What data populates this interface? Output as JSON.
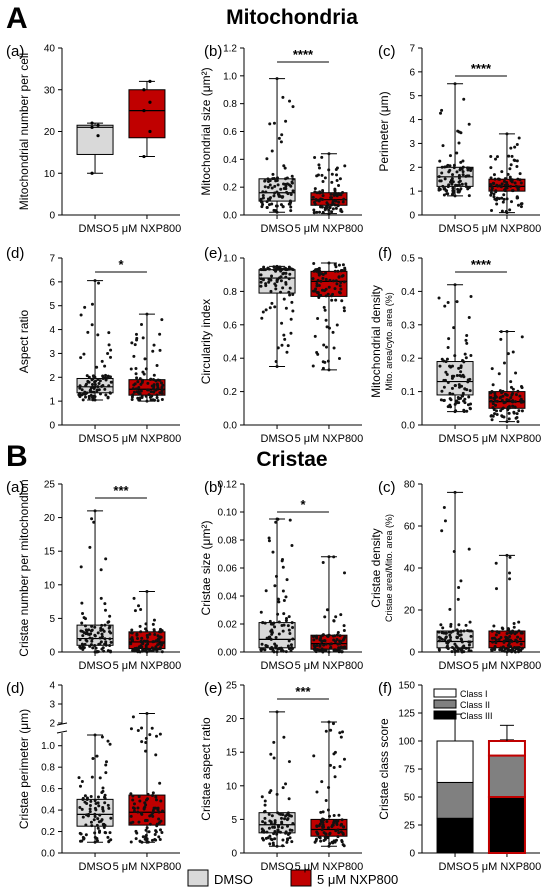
{
  "section_a": {
    "letter": "A",
    "title": "Mitochondria"
  },
  "section_b": {
    "letter": "B",
    "title": "Cristae"
  },
  "legend": [
    {
      "label": "DMSO",
      "color": "#d9d9d9"
    },
    {
      "label": "5 μM NXP800",
      "color": "#c00000"
    }
  ],
  "colors": {
    "dmso": "#d9d9d9",
    "nxp": "#c00000"
  },
  "chart_data": [
    {
      "panel": "A(a)",
      "type": "box",
      "ylabel": "Mitochondrial number per cell",
      "ylim": [
        0,
        40
      ],
      "yticks": [
        0,
        10,
        20,
        30,
        40
      ],
      "categories": [
        "DMSO",
        "5 μM NXP800"
      ],
      "significance": "",
      "series": [
        {
          "min": 10,
          "q1": 14.5,
          "median": 21,
          "q3": 21.5,
          "max": 22,
          "points": [
            10,
            19,
            21,
            21.5,
            22
          ]
        },
        {
          "min": 14,
          "q1": 18.5,
          "median": 25,
          "q3": 30,
          "max": 32,
          "points": [
            14,
            20,
            25,
            27,
            30,
            32
          ]
        }
      ]
    },
    {
      "panel": "A(b)",
      "type": "box",
      "ylabel": "Mitochondrial size (μm²)",
      "ylim": [
        0,
        1.2
      ],
      "yticks": [
        0,
        0.2,
        0.4,
        0.6,
        0.8,
        1.0,
        1.2
      ],
      "categories": [
        "DMSO",
        "5 μM NXP800"
      ],
      "significance": "****",
      "series": [
        {
          "min": 0.02,
          "q1": 0.1,
          "median": 0.16,
          "q3": 0.26,
          "max": 0.98
        },
        {
          "min": 0.01,
          "q1": 0.07,
          "median": 0.11,
          "q3": 0.16,
          "max": 0.44
        }
      ]
    },
    {
      "panel": "A(c)",
      "type": "box",
      "ylabel": "Perimeter (μm)",
      "ylim": [
        0,
        7
      ],
      "yticks": [
        0,
        1,
        2,
        3,
        4,
        5,
        6,
        7
      ],
      "categories": [
        "DMSO",
        "5 μM NXP800"
      ],
      "significance": "****",
      "series": [
        {
          "min": 0.8,
          "q1": 1.2,
          "median": 1.6,
          "q3": 2.0,
          "max": 5.5
        },
        {
          "min": 0.1,
          "q1": 1.0,
          "median": 1.2,
          "q3": 1.5,
          "max": 3.4
        }
      ]
    },
    {
      "panel": "A(d)",
      "type": "box",
      "ylabel": "Aspect ratio",
      "ylim": [
        0,
        7
      ],
      "yticks": [
        0,
        1,
        2,
        3,
        4,
        5,
        6,
        7
      ],
      "categories": [
        "DMSO",
        "5 μM NXP800"
      ],
      "significance": "*",
      "series": [
        {
          "min": 1.05,
          "q1": 1.35,
          "median": 1.6,
          "q3": 1.95,
          "max": 6.05
        },
        {
          "min": 1.0,
          "q1": 1.25,
          "median": 1.5,
          "q3": 1.9,
          "max": 4.65
        }
      ]
    },
    {
      "panel": "A(e)",
      "type": "box",
      "ylabel": "Circularity index",
      "ylim": [
        0,
        1.0
      ],
      "yticks": [
        0,
        0.2,
        0.4,
        0.6,
        0.8,
        1.0
      ],
      "categories": [
        "DMSO",
        "5 μM NXP800"
      ],
      "significance": "",
      "series": [
        {
          "min": 0.35,
          "q1": 0.79,
          "median": 0.88,
          "q3": 0.93,
          "max": 0.95
        },
        {
          "min": 0.33,
          "q1": 0.77,
          "median": 0.86,
          "q3": 0.92,
          "max": 0.97
        }
      ]
    },
    {
      "panel": "A(f)",
      "type": "box",
      "ylabel": "Mitochondrial density",
      "ylabel2": "Mito. area/cyto. area (%)",
      "ylim": [
        0,
        0.5
      ],
      "yticks": [
        0,
        0.1,
        0.2,
        0.3,
        0.4,
        0.5
      ],
      "categories": [
        "DMSO",
        "5 μM NXP800"
      ],
      "significance": "****",
      "series": [
        {
          "min": 0.04,
          "q1": 0.09,
          "median": 0.13,
          "q3": 0.19,
          "max": 0.42
        },
        {
          "min": 0.01,
          "q1": 0.05,
          "median": 0.07,
          "q3": 0.1,
          "max": 0.28
        }
      ]
    },
    {
      "panel": "B(a)",
      "type": "box",
      "ylabel": "Cristae number per mitochondion",
      "ylim": [
        0,
        25
      ],
      "yticks": [
        0,
        5,
        10,
        15,
        20,
        25
      ],
      "categories": [
        "DMSO",
        "5 μM NXP800"
      ],
      "significance": "***",
      "series": [
        {
          "min": 0,
          "q1": 1,
          "median": 2,
          "q3": 4,
          "max": 21
        },
        {
          "min": 0,
          "q1": 0.5,
          "median": 1.5,
          "q3": 3,
          "max": 9
        }
      ]
    },
    {
      "panel": "B(b)",
      "type": "box",
      "ylabel": "Cristae size (μm²)",
      "ylim": [
        0,
        0.12
      ],
      "yticks": [
        0,
        0.02,
        0.04,
        0.06,
        0.08,
        0.1,
        0.12
      ],
      "categories": [
        "DMSO",
        "5 μM NXP800"
      ],
      "significance": "*",
      "series": [
        {
          "min": 0,
          "q1": 0.003,
          "median": 0.009,
          "q3": 0.021,
          "max": 0.095
        },
        {
          "min": 0,
          "q1": 0.002,
          "median": 0.006,
          "q3": 0.012,
          "max": 0.068
        }
      ]
    },
    {
      "panel": "B(c)",
      "type": "box",
      "ylabel": "Cristae density",
      "ylabel2": "Cristae area/Mito. area (%)",
      "ylim": [
        0,
        80
      ],
      "yticks": [
        0,
        20,
        40,
        60,
        80
      ],
      "categories": [
        "DMSO",
        "5 μM NXP800"
      ],
      "significance": "",
      "series": [
        {
          "min": 0,
          "q1": 2,
          "median": 5,
          "q3": 10,
          "max": 76
        },
        {
          "min": 0,
          "q1": 2,
          "median": 5,
          "q3": 10,
          "max": 46
        }
      ]
    },
    {
      "panel": "B(d)",
      "type": "box",
      "ylabel": "Cristae perimeter (μm)",
      "ylim": [
        0,
        4
      ],
      "yticks": [
        0,
        0.2,
        0.4,
        0.6,
        0.8,
        1.0,
        2,
        3,
        4
      ],
      "broken_axis": true,
      "categories": [
        "DMSO",
        "5 μM NXP800"
      ],
      "significance": "",
      "series": [
        {
          "min": 0.1,
          "q1": 0.25,
          "median": 0.36,
          "q3": 0.5,
          "max": 1.1
        },
        {
          "min": 0.1,
          "q1": 0.26,
          "median": 0.38,
          "q3": 0.54,
          "max": 2.5
        }
      ]
    },
    {
      "panel": "B(e)",
      "type": "box",
      "ylabel": "Cristae aspect ratio",
      "ylim": [
        0,
        25
      ],
      "yticks": [
        0,
        5,
        10,
        15,
        20,
        25
      ],
      "categories": [
        "DMSO",
        "5 μM NXP800"
      ],
      "significance": "***",
      "series": [
        {
          "min": 1,
          "q1": 3,
          "median": 4.2,
          "q3": 6,
          "max": 21
        },
        {
          "min": 1,
          "q1": 2.5,
          "median": 3.5,
          "q3": 5,
          "max": 19.5
        }
      ]
    },
    {
      "panel": "B(f)",
      "type": "bar",
      "ylabel": "Cristae class score",
      "ylim": [
        0,
        150
      ],
      "yticks": [
        0,
        25,
        50,
        75,
        100,
        125,
        150
      ],
      "categories": [
        "DMSO",
        "5 μM NXP800"
      ],
      "stacked": true,
      "series": [
        {
          "name": "Class I",
          "values": [
            37,
            13
          ],
          "err": [
            24,
            14
          ]
        },
        {
          "name": "Class II",
          "values": [
            32,
            37
          ],
          "err": [
            16,
            14
          ]
        },
        {
          "name": "Class III",
          "values": [
            31,
            50
          ],
          "err": [
            16,
            28
          ]
        }
      ]
    }
  ]
}
